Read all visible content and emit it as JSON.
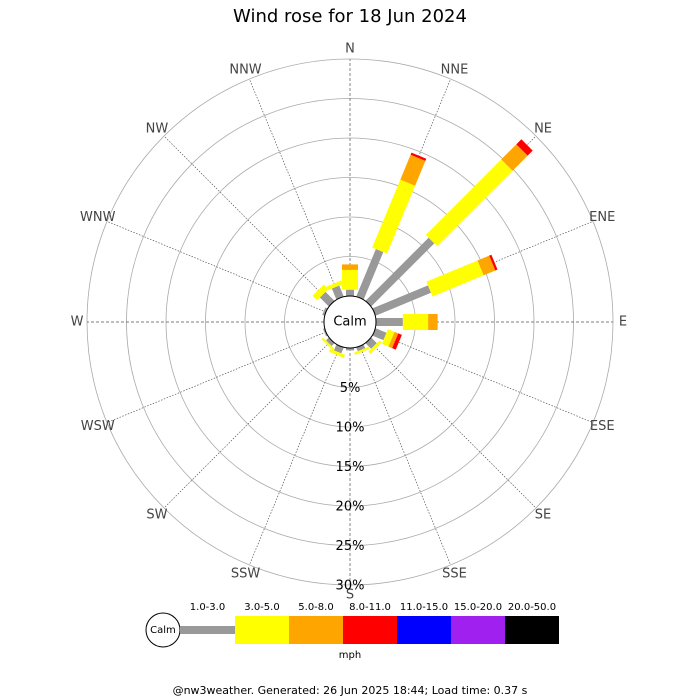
{
  "chart_data": {
    "type": "windrose",
    "title": "Wind rose for 18 Jun 2024",
    "center_label": "Calm",
    "unit": "mph",
    "footer": "@nw3weather. Generated: 26 Jun 2025 18:44; Load time: 0.37 s",
    "categories": [
      "N",
      "NNE",
      "NE",
      "ENE",
      "E",
      "ESE",
      "SE",
      "SSE",
      "S",
      "SSW",
      "SW",
      "WSW",
      "W",
      "WNW",
      "NW",
      "NNW"
    ],
    "rlim": [
      0,
      30
    ],
    "rticks": [
      {
        "value": 5,
        "label": "5%"
      },
      {
        "value": 10,
        "label": "10%"
      },
      {
        "value": 15,
        "label": "15%"
      },
      {
        "value": 20,
        "label": "20%"
      },
      {
        "value": 25,
        "label": "25%"
      },
      {
        "value": 30,
        "label": "30%"
      }
    ],
    "series": [
      {
        "name": "1.0-3.0",
        "color": "#999999",
        "values": [
          0.8,
          6.5,
          11.3,
          7.6,
          3.4,
          1.5,
          1.0,
          0.5,
          0.3,
          0.8,
          0.5,
          0.2,
          0,
          0.3,
          1.6,
          1.5
        ]
      },
      {
        "name": "3.0-5.0",
        "color": "#ffff00",
        "values": [
          2.5,
          9.3,
          13.5,
          7.0,
          3.2,
          0.9,
          0.4,
          0.3,
          0,
          0.4,
          0.3,
          0,
          0,
          0,
          0.8,
          0.5
        ]
      },
      {
        "name": "5.0-8.0",
        "color": "#ffa500",
        "values": [
          0.7,
          3.4,
          2.7,
          1.6,
          1.2,
          0.5,
          0,
          0,
          0,
          0,
          0,
          0,
          0,
          0,
          0,
          0
        ]
      },
      {
        "name": "8.0-11.0",
        "color": "#ff0000",
        "values": [
          0,
          0.3,
          0.9,
          0.3,
          0,
          0.5,
          0,
          0,
          0,
          0,
          0,
          0,
          0,
          0,
          0,
          0
        ]
      },
      {
        "name": "11.0-15.0",
        "color": "#0000ff",
        "values": [
          0,
          0,
          0,
          0,
          0,
          0,
          0,
          0,
          0,
          0,
          0,
          0,
          0,
          0,
          0,
          0
        ]
      },
      {
        "name": "15.0-20.0",
        "color": "#a020f0",
        "values": [
          0,
          0,
          0,
          0,
          0,
          0,
          0,
          0,
          0,
          0,
          0,
          0,
          0,
          0,
          0,
          0
        ]
      },
      {
        "name": "20.0-50.0",
        "color": "#000000",
        "values": [
          0,
          0,
          0,
          0,
          0,
          0,
          0,
          0,
          0,
          0,
          0,
          0,
          0,
          0,
          0,
          0
        ]
      }
    ]
  }
}
